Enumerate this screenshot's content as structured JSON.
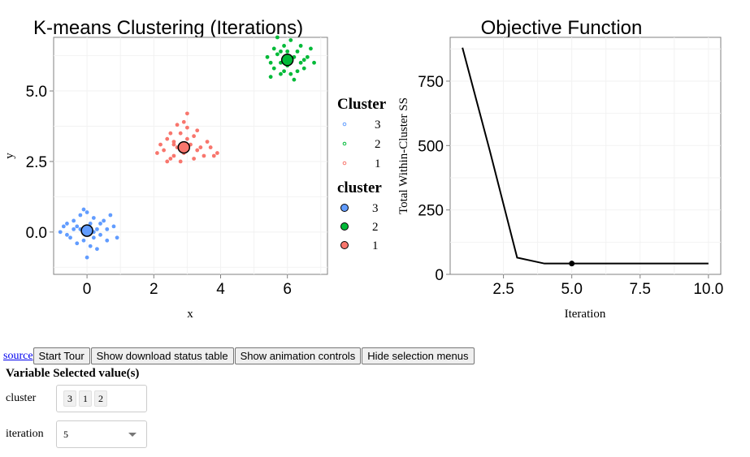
{
  "chart_data": [
    {
      "type": "scatter",
      "title": "K-means Clustering (Iterations)",
      "xlabel": "x",
      "ylabel": "y",
      "xlim": [
        -1.0,
        7.2
      ],
      "ylim": [
        -1.5,
        6.9
      ],
      "xticks": [
        0,
        2,
        4,
        6
      ],
      "xtick_labels": [
        "0",
        "2",
        "4",
        "6"
      ],
      "yticks": [
        0,
        2.5,
        5
      ],
      "ytick_labels": [
        "0.0",
        "2.5",
        "5.0"
      ],
      "grid": true,
      "series": [
        {
          "cluster": "1",
          "color": "#F8766D",
          "points": [
            [
              2.4,
              3.3
            ],
            [
              2.6,
              3.1
            ],
            [
              2.8,
              3.5
            ],
            [
              3.0,
              3.7
            ],
            [
              3.2,
              3.4
            ],
            [
              2.3,
              2.9
            ],
            [
              2.5,
              2.6
            ],
            [
              2.9,
              2.8
            ],
            [
              3.3,
              2.9
            ],
            [
              3.5,
              2.7
            ],
            [
              2.7,
              3.0
            ],
            [
              3.1,
              3.1
            ],
            [
              2.2,
              3.1
            ],
            [
              3.6,
              3.2
            ],
            [
              3.8,
              2.7
            ],
            [
              2.9,
              3.9
            ],
            [
              3.0,
              4.2
            ],
            [
              3.4,
              3.0
            ],
            [
              2.6,
              2.7
            ],
            [
              2.5,
              3.5
            ],
            [
              2.8,
              2.5
            ],
            [
              3.2,
              2.6
            ],
            [
              3.7,
              3.0
            ],
            [
              2.4,
              2.5
            ],
            [
              3.0,
              3.3
            ],
            [
              3.3,
              3.6
            ],
            [
              2.7,
              3.8
            ],
            [
              2.1,
              2.8
            ],
            [
              3.9,
              2.8
            ],
            [
              2.6,
              3.2
            ]
          ]
        },
        {
          "cluster": "2",
          "color": "#00BA38",
          "points": [
            [
              5.5,
              6.0
            ],
            [
              5.7,
              6.3
            ],
            [
              5.9,
              6.6
            ],
            [
              6.1,
              6.8
            ],
            [
              6.3,
              6.4
            ],
            [
              5.6,
              5.8
            ],
            [
              5.8,
              5.6
            ],
            [
              6.0,
              5.9
            ],
            [
              6.4,
              6.0
            ],
            [
              6.6,
              6.2
            ],
            [
              5.5,
              5.5
            ],
            [
              5.9,
              6.1
            ],
            [
              6.2,
              6.2
            ],
            [
              6.5,
              5.8
            ],
            [
              6.8,
              6.0
            ],
            [
              5.7,
              6.9
            ],
            [
              6.0,
              6.4
            ],
            [
              6.3,
              5.7
            ],
            [
              5.6,
              6.5
            ],
            [
              6.7,
              6.5
            ],
            [
              5.8,
              6.0
            ],
            [
              6.1,
              5.6
            ],
            [
              5.4,
              6.2
            ],
            [
              6.4,
              6.6
            ],
            [
              6.0,
              6.0
            ],
            [
              6.2,
              5.4
            ],
            [
              5.9,
              5.7
            ],
            [
              6.5,
              6.1
            ],
            [
              5.8,
              6.4
            ],
            [
              6.1,
              6.1
            ]
          ]
        },
        {
          "cluster": "3",
          "color": "#619CFF",
          "points": [
            [
              -0.8,
              0.0
            ],
            [
              -0.6,
              0.3
            ],
            [
              -0.4,
              0.4
            ],
            [
              -0.2,
              0.6
            ],
            [
              0.0,
              0.7
            ],
            [
              0.2,
              0.5
            ],
            [
              0.4,
              0.3
            ],
            [
              0.6,
              0.1
            ],
            [
              0.8,
              0.2
            ],
            [
              0.9,
              -0.2
            ],
            [
              -0.5,
              -0.2
            ],
            [
              -0.3,
              -0.4
            ],
            [
              -0.1,
              -0.3
            ],
            [
              0.1,
              -0.5
            ],
            [
              0.3,
              -0.6
            ],
            [
              0.0,
              -0.9
            ],
            [
              -0.2,
              0.1
            ],
            [
              0.3,
              0.1
            ],
            [
              -0.4,
              0.1
            ],
            [
              0.5,
              0.4
            ],
            [
              0.7,
              0.6
            ],
            [
              -0.6,
              -0.1
            ],
            [
              0.2,
              -0.2
            ],
            [
              -0.1,
              0.8
            ],
            [
              0.4,
              -0.1
            ],
            [
              -0.3,
              0.2
            ],
            [
              0.1,
              0.3
            ],
            [
              0.6,
              -0.3
            ],
            [
              -0.7,
              0.2
            ],
            [
              0.2,
              0.0
            ]
          ]
        }
      ],
      "centers": [
        {
          "cluster": "1",
          "x": 2.9,
          "y": 3.0,
          "color": "#F8766D"
        },
        {
          "cluster": "2",
          "x": 6.0,
          "y": 6.1,
          "color": "#00BA38"
        },
        {
          "cluster": "3",
          "x": 0.0,
          "y": 0.05,
          "color": "#619CFF"
        }
      ],
      "legends": [
        {
          "title": "Cluster",
          "style": "open-small",
          "entries": [
            "3",
            "2",
            "1"
          ],
          "colors": [
            "#619CFF",
            "#00BA38",
            "#F8766D"
          ]
        },
        {
          "title": "cluster",
          "style": "filled-large",
          "entries": [
            "3",
            "2",
            "1"
          ],
          "colors": [
            "#619CFF",
            "#00BA38",
            "#F8766D"
          ]
        }
      ]
    },
    {
      "type": "line",
      "title": "Objective Function",
      "xlabel": "Iteration",
      "ylabel": "Total Within-Cluster SS",
      "xlim": [
        0.55,
        10.45
      ],
      "ylim": [
        0,
        920
      ],
      "xticks": [
        2.5,
        5.0,
        7.5,
        10.0
      ],
      "xtick_labels": [
        "2.5",
        "5.0",
        "7.5",
        "10.0"
      ],
      "yticks": [
        0,
        250,
        500,
        750
      ],
      "ytick_labels": [
        "0",
        "250",
        "500",
        "750"
      ],
      "grid": true,
      "x": [
        1,
        2,
        3,
        4,
        5,
        6,
        7,
        8,
        9,
        10
      ],
      "y": [
        880,
        480,
        65,
        42,
        42,
        42,
        42,
        42,
        42,
        42
      ],
      "highlight": {
        "x": 5,
        "y": 42
      }
    }
  ],
  "toolbar": {
    "source_link": "source",
    "buttons": [
      "Start Tour",
      "Show download status table",
      "Show animation controls",
      "Hide selection menus"
    ]
  },
  "selection": {
    "header": "Variable Selected value(s)",
    "rows": [
      {
        "label": "cluster",
        "chips": [
          "3",
          "1",
          "2"
        ]
      },
      {
        "label": "iteration",
        "value": "5"
      }
    ]
  }
}
